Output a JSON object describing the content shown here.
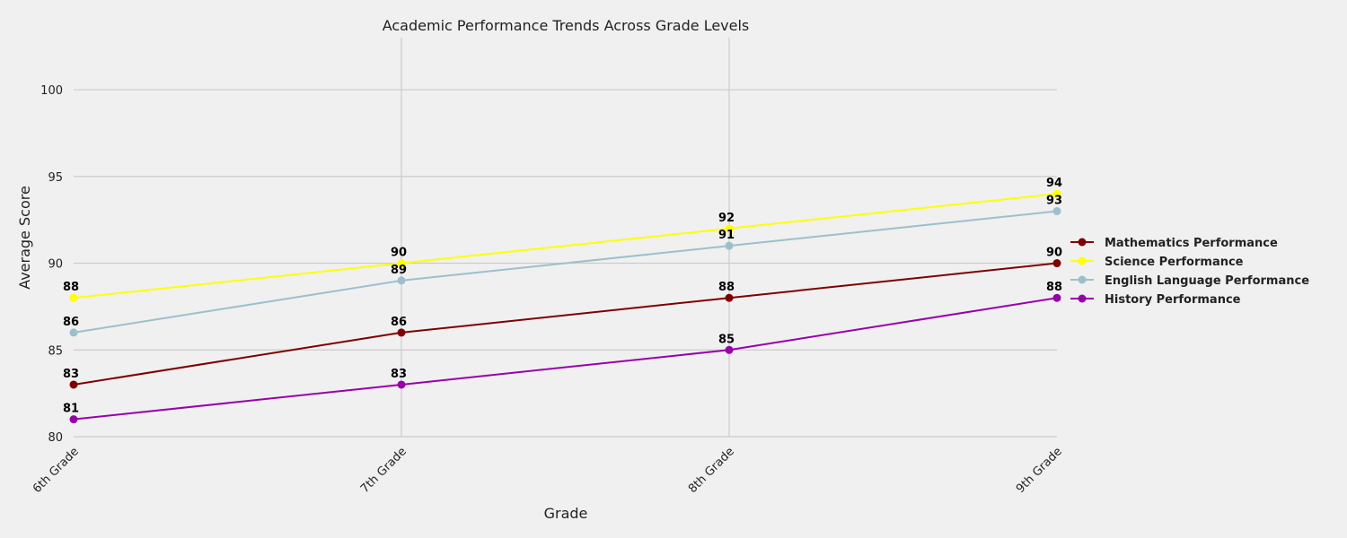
{
  "chart_data": {
    "type": "line",
    "title": "Academic Performance Trends Across Grade Levels",
    "xlabel": "Grade",
    "ylabel": "Average Score",
    "categories": [
      "6th Grade",
      "7th Grade",
      "8th Grade",
      "9th Grade"
    ],
    "ylim": [
      80,
      103
    ],
    "yticks": [
      80,
      85,
      90,
      95,
      100
    ],
    "grid": true,
    "legend_position": "right",
    "series": [
      {
        "name": "Mathematics Performance",
        "color": "#7f0000",
        "values": [
          83,
          86,
          88,
          90
        ]
      },
      {
        "name": "Science Performance",
        "color": "#ffff00",
        "values": [
          88,
          90,
          92,
          94
        ]
      },
      {
        "name": "English Language Performance",
        "color": "#9dbfcc",
        "values": [
          86,
          89,
          91,
          93
        ]
      },
      {
        "name": "History Performance",
        "color": "#9900aa",
        "values": [
          81,
          83,
          85,
          88
        ]
      }
    ]
  }
}
